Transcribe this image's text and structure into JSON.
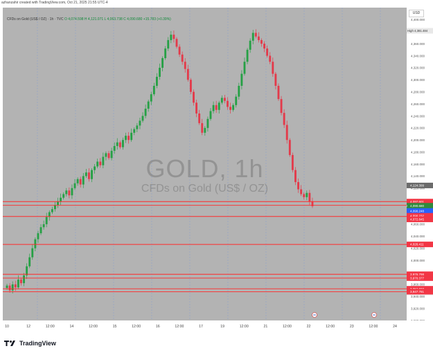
{
  "header": {
    "text": "azhanzahir created with TradingView.com, Oct 21, 2025 21:55 UTC-4"
  },
  "currency": "USD",
  "legend": {
    "title": "CFDs on Gold (US$ / OZ) · 1h · TVC",
    "values": "O 4,074.598  H 4,121.071  L 4,063.738  C 4,090.680  +15.783 (+0.39%)"
  },
  "watermark": {
    "symbol": "GOLD, 1h",
    "description": "CFDs on Gold (US$ / OZ)"
  },
  "footer": {
    "brand": "TradingView"
  },
  "colors": {
    "up": "#26a045",
    "down": "#e33a4a",
    "level_line": "#ff2b2b",
    "background": "#b3b3b3"
  },
  "chart_data": {
    "type": "candlestick",
    "ylim": [
      3900,
      4420
    ],
    "y_ticks": [
      3900,
      3920,
      3940,
      3960,
      3980,
      4000,
      4020,
      4040,
      4060,
      4080,
      4100,
      4120,
      4140,
      4160,
      4180,
      4200,
      4220,
      4240,
      4260,
      4280,
      4300,
      4320,
      4340,
      4360,
      4380,
      4400
    ],
    "x_tick_labels": [
      "10",
      "12",
      "12:00",
      "14",
      "12:00",
      "15",
      "12:00",
      "16",
      "12:00",
      "17",
      "19",
      "12:00",
      "21",
      "12:00",
      "22",
      "12:00",
      "23",
      "12:00",
      "24"
    ],
    "close_path": [
      3958,
      3950,
      3960,
      3955,
      3968,
      3962,
      3975,
      3990,
      4005,
      4020,
      4035,
      4045,
      4055,
      4060,
      4072,
      4080,
      4085,
      4092,
      4098,
      4104,
      4110,
      4116,
      4108,
      4120,
      4128,
      4135,
      4126,
      4140,
      4146,
      4135,
      4150,
      4156,
      4164,
      4158,
      4172,
      4178,
      4170,
      4182,
      4190,
      4196,
      4188,
      4200,
      4207,
      4200,
      4212,
      4218,
      4224,
      4232,
      4240,
      4252,
      4264,
      4276,
      4290,
      4305,
      4320,
      4336,
      4352,
      4366,
      4375,
      4368,
      4355,
      4342,
      4330,
      4318,
      4300,
      4280,
      4262,
      4244,
      4228,
      4212,
      4220,
      4235,
      4248,
      4258,
      4250,
      4262,
      4270,
      4265,
      4255,
      4250,
      4258,
      4272,
      4290,
      4310,
      4330,
      4350,
      4365,
      4378,
      4372,
      4366,
      4360,
      4352,
      4340,
      4330,
      4310,
      4290,
      4268,
      4245,
      4225,
      4200,
      4175,
      4150,
      4130,
      4118,
      4110,
      4105,
      4112,
      4098,
      4090
    ],
    "current_price": 4090.68,
    "high_label": {
      "tag": "High",
      "value": "4,381.484",
      "price": 4381.484
    },
    "low_label": {
      "tag": "Low",
      "value": "3,946.590",
      "price": 3946.59
    },
    "levels": [
      {
        "label": "4,097.601",
        "price": 4097.601,
        "color": "#f23645",
        "tag": ""
      },
      {
        "label": "4,091.325",
        "price": 4091.325,
        "color": "#f23645",
        "tag": "Ask"
      },
      {
        "label": "4,090.680",
        "price": 4090.68,
        "color": "#2e8b3d",
        "tag": "GOLD",
        "sub": "04:18"
      },
      {
        "label": "4,090.248",
        "price": 4082.0,
        "color": "#2962ff",
        "tag": "Bid"
      },
      {
        "label": "4,090.232",
        "price": 4074.0,
        "color": "#f23645",
        "tag": ""
      },
      {
        "label": "4,072.845",
        "price": 4068.0,
        "color": "#f23645",
        "tag": ""
      },
      {
        "label": "4,026.411",
        "price": 4026.411,
        "color": "#f23645",
        "tag": ""
      },
      {
        "label": "3,976.798",
        "price": 3976.798,
        "color": "#f23645",
        "tag": ""
      },
      {
        "label": "3,970.377",
        "price": 3970.377,
        "color": "#f23645",
        "tag": ""
      },
      {
        "label": "3,952.693",
        "price": 3952.693,
        "color": "#f23645",
        "tag": ""
      },
      {
        "label": "3,947.781",
        "price": 3947.781,
        "color": "#f23645",
        "tag": ""
      }
    ],
    "level_lines": [
      4097.601,
      4091.325,
      4072.845,
      4026.411,
      3976.798,
      3970.377,
      3952.693,
      3947.781
    ],
    "crosshair_price": {
      "label": "4,124.399",
      "price": 4124.399
    }
  }
}
